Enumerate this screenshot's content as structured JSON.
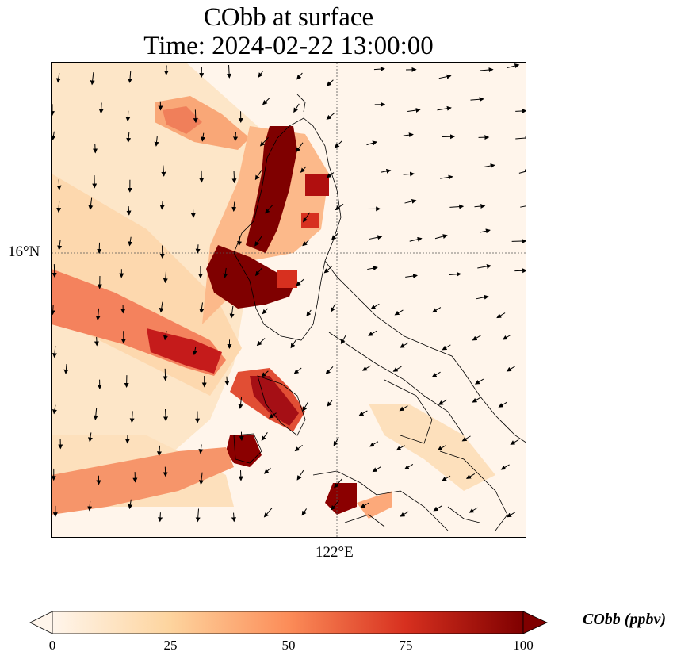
{
  "title_line1": "CObb at surface",
  "title_line2": "Time: 2024-02-22 13:00:00",
  "lat_label": "16°N",
  "lon_label": "122°E",
  "colorbar": {
    "label": "CObb (ppbv)",
    "ticks": [
      "0",
      "25",
      "50",
      "75",
      "100"
    ],
    "min": 0,
    "max": 100,
    "colormap": [
      "#fff5eb",
      "#fdd49e",
      "#fc8d59",
      "#d7301f",
      "#7f0000"
    ]
  },
  "colors": {
    "background": "#fff5eb",
    "high": "#7f0000",
    "coast": "#000000"
  }
}
